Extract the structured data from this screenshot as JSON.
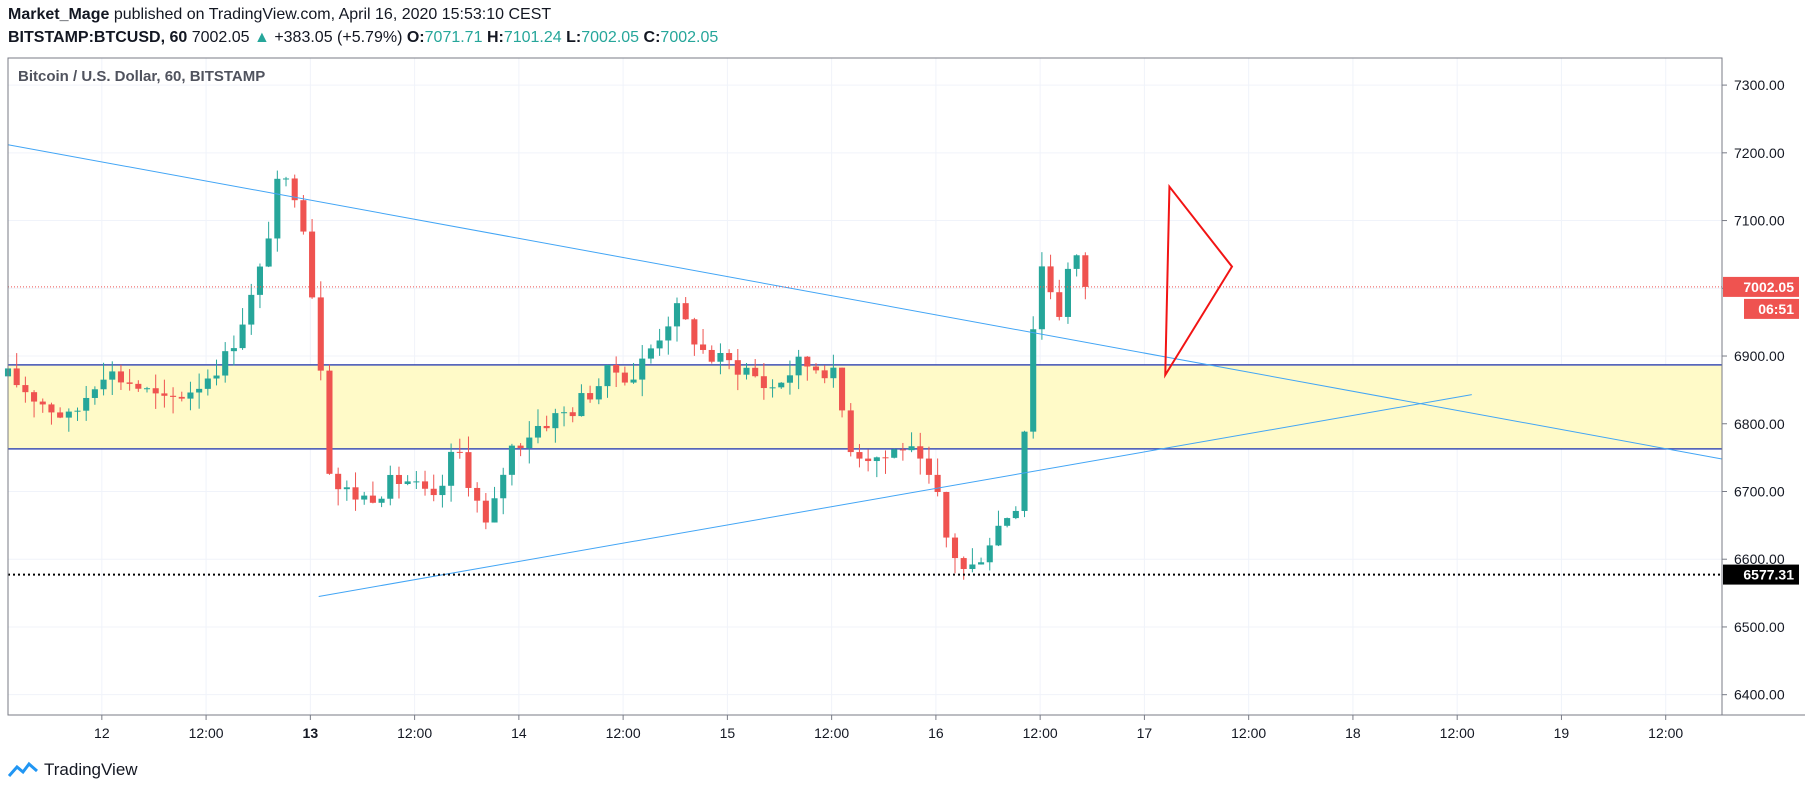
{
  "header": {
    "author": "Market_Mage",
    "published_text": "published on TradingView.com, April 16, 2020 15:53:10 CEST",
    "symbol": "BITSTAMP:BTCUSD, 60",
    "last": "7002.05",
    "change": "+383.05 (+5.79%)",
    "o_label": "O:",
    "o_value": "7071.71",
    "h_label": "H:",
    "h_value": "7101.24",
    "l_label": "L:",
    "l_value": "7002.05",
    "c_label": "C:",
    "c_value": "7002.05"
  },
  "footer": {
    "brand": "TradingView"
  },
  "colors": {
    "up": "#26a69a",
    "down": "#ef5350",
    "zone_fill": "#fffac8",
    "zone_line": "#3f51b5",
    "trendline": "#42a5f5",
    "triangle": "#f21414",
    "price_line": "#ef5350",
    "grid": "#f0f3fa"
  },
  "chart_data": {
    "type": "candlestick",
    "title": "Bitcoin / U.S. Dollar, 60, BITSTAMP",
    "ylim": [
      6370,
      7340
    ],
    "xlim_day": [
      11.55,
      19.77
    ],
    "y_ticks": [
      6400,
      6500,
      6600,
      6700,
      6800,
      6900,
      7000,
      7100,
      7200,
      7300
    ],
    "y_tick_labels": [
      "6400.00",
      "6500.00",
      "6600.00",
      "6700.00",
      "6800.00",
      "6900.00",
      "7000.00",
      "7100.00",
      "7200.00",
      "7300.00"
    ],
    "x_ticks": [
      {
        "day": 12.0,
        "label": "12",
        "bold": false
      },
      {
        "day": 12.5,
        "label": "12:00",
        "bold": false
      },
      {
        "day": 13.0,
        "label": "13",
        "bold": true
      },
      {
        "day": 13.5,
        "label": "12:00",
        "bold": false
      },
      {
        "day": 14.0,
        "label": "14",
        "bold": false
      },
      {
        "day": 14.5,
        "label": "12:00",
        "bold": false
      },
      {
        "day": 15.0,
        "label": "15",
        "bold": false
      },
      {
        "day": 15.5,
        "label": "12:00",
        "bold": false
      },
      {
        "day": 16.0,
        "label": "16",
        "bold": false
      },
      {
        "day": 16.5,
        "label": "12:00",
        "bold": false
      },
      {
        "day": 17.0,
        "label": "17",
        "bold": false
      },
      {
        "day": 17.5,
        "label": "12:00",
        "bold": false
      },
      {
        "day": 18.0,
        "label": "18",
        "bold": false
      },
      {
        "day": 18.5,
        "label": "12:00",
        "bold": false
      },
      {
        "day": 19.0,
        "label": "19",
        "bold": false
      },
      {
        "day": 19.5,
        "label": "12:00",
        "bold": false
      }
    ],
    "price_labels": [
      {
        "value": 7002.05,
        "text": "7002.05",
        "bg": "#ef5350",
        "color": "#ffffff"
      },
      {
        "value": 6577.31,
        "text": "6577.31",
        "bg": "#000000",
        "color": "#ffffff"
      }
    ],
    "countdown": "06:51",
    "current_price": 7002.05,
    "support_price": 6577.31,
    "zone": [
      6763,
      6887
    ],
    "trendlines": [
      {
        "from": [
          11.55,
          7212
        ],
        "to": [
          19.77,
          6748
        ]
      },
      {
        "from": [
          13.04,
          6545
        ],
        "to": [
          18.57,
          6843
        ]
      }
    ],
    "triangle": [
      [
        17.12,
        7150
      ],
      [
        17.42,
        7032
      ],
      [
        17.1,
        6872
      ]
    ],
    "candle_anchors": [
      [
        11.55,
        6870
      ],
      [
        11.7,
        6835
      ],
      [
        11.85,
        6805
      ],
      [
        12.0,
        6880
      ],
      [
        12.15,
        6860
      ],
      [
        12.3,
        6830
      ],
      [
        12.45,
        6855
      ],
      [
        12.6,
        6900
      ],
      [
        12.75,
        7010
      ],
      [
        12.85,
        7160
      ],
      [
        12.95,
        7140
      ],
      [
        13.05,
        6890
      ],
      [
        13.1,
        6710
      ],
      [
        13.25,
        6690
      ],
      [
        13.45,
        6720
      ],
      [
        13.6,
        6680
      ],
      [
        13.7,
        6770
      ],
      [
        13.85,
        6640
      ],
      [
        13.95,
        6760
      ],
      [
        14.1,
        6800
      ],
      [
        14.25,
        6820
      ],
      [
        14.45,
        6880
      ],
      [
        14.55,
        6870
      ],
      [
        14.75,
        6970
      ],
      [
        14.9,
        6900
      ],
      [
        15.1,
        6880
      ],
      [
        15.2,
        6850
      ],
      [
        15.35,
        6890
      ],
      [
        15.5,
        6880
      ],
      [
        15.6,
        6760
      ],
      [
        15.75,
        6750
      ],
      [
        15.85,
        6770
      ],
      [
        16.0,
        6700
      ],
      [
        16.05,
        6630
      ],
      [
        16.15,
        6575
      ],
      [
        16.3,
        6650
      ],
      [
        16.4,
        6690
      ],
      [
        16.45,
        6900
      ],
      [
        16.5,
        7040
      ],
      [
        16.6,
        6960
      ],
      [
        16.65,
        7060
      ],
      [
        16.72,
        7002
      ]
    ],
    "candles": []
  }
}
